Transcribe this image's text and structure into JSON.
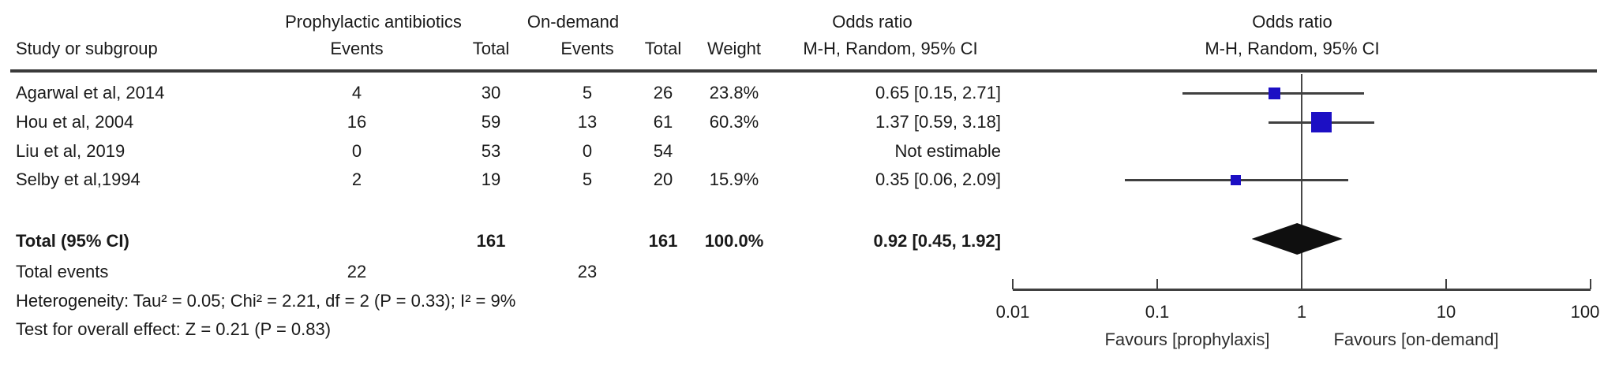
{
  "colors": {
    "marker_blue": "#1c0fc4",
    "diamond_black": "#0f0f0f",
    "line_gray": "#404040",
    "text": "#1a1a1a"
  },
  "table": {
    "group1_header": "Prophylactic antibiotics",
    "group2_header": "On-demand",
    "col_study": "Study or subgroup",
    "col_events1": "Events",
    "col_total1": "Total",
    "col_events2": "Events",
    "col_total2": "Total",
    "col_weight": "Weight",
    "or_header_line1": "Odds ratio",
    "or_header_line2": "M-H, Random, 95% CI",
    "plot_header_line1": "Odds ratio",
    "plot_header_line2": "M-H, Random, 95% CI",
    "rows": [
      {
        "study": "Agarwal et al, 2014",
        "events1": "4",
        "total1": "30",
        "events2": "5",
        "total2": "26",
        "weight": "23.8%",
        "or_text": "0.65 [0.15, 2.71]"
      },
      {
        "study": "Hou et al, 2004",
        "events1": "16",
        "total1": "59",
        "events2": "13",
        "total2": "61",
        "weight": "60.3%",
        "or_text": "1.37 [0.59, 3.18]"
      },
      {
        "study": "Liu et al, 2019",
        "events1": "0",
        "total1": "53",
        "events2": "0",
        "total2": "54",
        "weight": "",
        "or_text": "Not estimable"
      },
      {
        "study": "Selby et al,1994",
        "events1": "2",
        "total1": "19",
        "events2": "5",
        "total2": "20",
        "weight": "15.9%",
        "or_text": "0.35 [0.06, 2.09]"
      }
    ],
    "total_row": {
      "label": "Total (95% CI)",
      "total1": "161",
      "total2": "161",
      "weight": "100.0%",
      "or_text": "0.92 [0.45, 1.92]"
    },
    "total_events": {
      "label": "Total events",
      "events1": "22",
      "events2": "23"
    },
    "heterogeneity": "Heterogeneity: Tau² = 0.05; Chi² = 2.21, df = 2 (P = 0.33); I² = 9%",
    "overall_effect": "Test for overall effect: Z = 0.21 (P = 0.83)"
  },
  "chart_data": {
    "type": "forest",
    "title": "Odds ratio",
    "method": "M-H, Random, 95% CI",
    "x_scale": "log",
    "x_range": [
      0.01,
      100
    ],
    "x_ticks": [
      "0.01",
      "0.1",
      "1",
      "10",
      "100"
    ],
    "studies": [
      {
        "name": "Agarwal et al, 2014",
        "estimable": true,
        "or": 0.65,
        "ci_low": 0.15,
        "ci_high": 2.71,
        "weight_pct": 23.8
      },
      {
        "name": "Hou et al, 2004",
        "estimable": true,
        "or": 1.37,
        "ci_low": 0.59,
        "ci_high": 3.18,
        "weight_pct": 60.3
      },
      {
        "name": "Liu et al, 2019",
        "estimable": false,
        "or": null,
        "ci_low": null,
        "ci_high": null,
        "weight_pct": 0
      },
      {
        "name": "Selby et al,1994",
        "estimable": true,
        "or": 0.35,
        "ci_low": 0.06,
        "ci_high": 2.09,
        "weight_pct": 15.9
      }
    ],
    "total": {
      "or": 0.92,
      "ci_low": 0.45,
      "ci_high": 1.92,
      "weight_pct": 100.0
    },
    "favours_left": "Favours [prophylaxis]",
    "favours_right": "Favours [on-demand]"
  }
}
